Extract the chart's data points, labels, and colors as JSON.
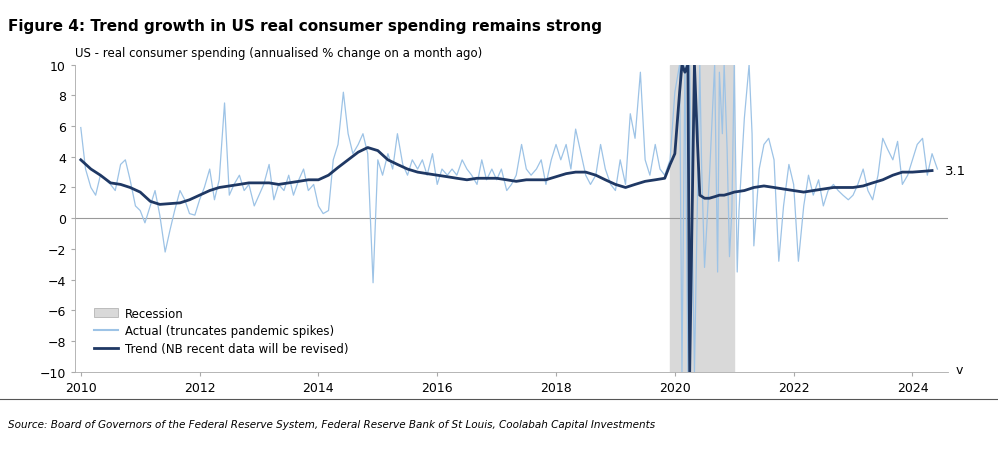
{
  "title": "Figure 4: Trend growth in US real consumer spending remains strong",
  "subtitle": "US - real consumer spending (annualised % change on a month ago)",
  "source": "Source: Board of Governors of the Federal Reserve System, Federal Reserve Bank of St Louis, Coolabah Capital Investments",
  "xlabel": "v",
  "ylim": [
    -10,
    10
  ],
  "xlim": [
    2009.9,
    2024.6
  ],
  "yticks": [
    -10,
    -8,
    -6,
    -4,
    -2,
    0,
    2,
    4,
    6,
    8,
    10
  ],
  "xticks": [
    2010,
    2012,
    2014,
    2016,
    2018,
    2020,
    2022,
    2024
  ],
  "recession_start": 2019.92,
  "recession_end": 2021.0,
  "last_trend_value": 3.1,
  "title_bg_color": "#d6dff0",
  "actual_color": "#9dc3e6",
  "trend_color": "#1f3864",
  "recession_color": "#d9d9d9",
  "actual_data": [
    [
      2010.0,
      5.9
    ],
    [
      2010.08,
      3.2
    ],
    [
      2010.17,
      2.0
    ],
    [
      2010.25,
      1.5
    ],
    [
      2010.33,
      2.8
    ],
    [
      2010.42,
      2.5
    ],
    [
      2010.5,
      2.2
    ],
    [
      2010.58,
      1.8
    ],
    [
      2010.67,
      3.5
    ],
    [
      2010.75,
      3.8
    ],
    [
      2010.83,
      2.5
    ],
    [
      2010.92,
      0.8
    ],
    [
      2011.0,
      0.5
    ],
    [
      2011.08,
      -0.3
    ],
    [
      2011.17,
      0.8
    ],
    [
      2011.25,
      1.8
    ],
    [
      2011.33,
      0.2
    ],
    [
      2011.42,
      -2.2
    ],
    [
      2011.5,
      -0.8
    ],
    [
      2011.58,
      0.5
    ],
    [
      2011.67,
      1.8
    ],
    [
      2011.75,
      1.2
    ],
    [
      2011.83,
      0.3
    ],
    [
      2011.92,
      0.2
    ],
    [
      2012.0,
      1.2
    ],
    [
      2012.08,
      2.0
    ],
    [
      2012.17,
      3.2
    ],
    [
      2012.25,
      1.2
    ],
    [
      2012.33,
      2.5
    ],
    [
      2012.42,
      7.5
    ],
    [
      2012.5,
      1.5
    ],
    [
      2012.58,
      2.2
    ],
    [
      2012.67,
      2.8
    ],
    [
      2012.75,
      1.8
    ],
    [
      2012.83,
      2.2
    ],
    [
      2012.92,
      0.8
    ],
    [
      2013.0,
      1.5
    ],
    [
      2013.08,
      2.2
    ],
    [
      2013.17,
      3.5
    ],
    [
      2013.25,
      1.2
    ],
    [
      2013.33,
      2.2
    ],
    [
      2013.42,
      1.8
    ],
    [
      2013.5,
      2.8
    ],
    [
      2013.58,
      1.5
    ],
    [
      2013.67,
      2.5
    ],
    [
      2013.75,
      3.2
    ],
    [
      2013.83,
      1.8
    ],
    [
      2013.92,
      2.2
    ],
    [
      2014.0,
      0.8
    ],
    [
      2014.08,
      0.3
    ],
    [
      2014.17,
      0.5
    ],
    [
      2014.25,
      3.8
    ],
    [
      2014.33,
      4.8
    ],
    [
      2014.42,
      8.2
    ],
    [
      2014.5,
      5.5
    ],
    [
      2014.58,
      4.2
    ],
    [
      2014.67,
      4.8
    ],
    [
      2014.75,
      5.5
    ],
    [
      2014.83,
      4.2
    ],
    [
      2014.92,
      -4.2
    ],
    [
      2015.0,
      3.8
    ],
    [
      2015.08,
      2.8
    ],
    [
      2015.17,
      4.2
    ],
    [
      2015.25,
      3.2
    ],
    [
      2015.33,
      5.5
    ],
    [
      2015.42,
      3.5
    ],
    [
      2015.5,
      2.8
    ],
    [
      2015.58,
      3.8
    ],
    [
      2015.67,
      3.2
    ],
    [
      2015.75,
      3.8
    ],
    [
      2015.83,
      2.8
    ],
    [
      2015.92,
      4.2
    ],
    [
      2016.0,
      2.2
    ],
    [
      2016.08,
      3.2
    ],
    [
      2016.17,
      2.8
    ],
    [
      2016.25,
      3.2
    ],
    [
      2016.33,
      2.8
    ],
    [
      2016.42,
      3.8
    ],
    [
      2016.5,
      3.2
    ],
    [
      2016.58,
      2.8
    ],
    [
      2016.67,
      2.2
    ],
    [
      2016.75,
      3.8
    ],
    [
      2016.83,
      2.5
    ],
    [
      2016.92,
      3.2
    ],
    [
      2017.0,
      2.5
    ],
    [
      2017.08,
      3.2
    ],
    [
      2017.17,
      1.8
    ],
    [
      2017.25,
      2.2
    ],
    [
      2017.33,
      2.8
    ],
    [
      2017.42,
      4.8
    ],
    [
      2017.5,
      3.2
    ],
    [
      2017.58,
      2.8
    ],
    [
      2017.67,
      3.2
    ],
    [
      2017.75,
      3.8
    ],
    [
      2017.83,
      2.2
    ],
    [
      2017.92,
      3.8
    ],
    [
      2018.0,
      4.8
    ],
    [
      2018.08,
      3.8
    ],
    [
      2018.17,
      4.8
    ],
    [
      2018.25,
      3.2
    ],
    [
      2018.33,
      5.8
    ],
    [
      2018.42,
      4.2
    ],
    [
      2018.5,
      2.8
    ],
    [
      2018.58,
      2.2
    ],
    [
      2018.67,
      2.8
    ],
    [
      2018.75,
      4.8
    ],
    [
      2018.83,
      3.2
    ],
    [
      2018.92,
      2.2
    ],
    [
      2019.0,
      1.8
    ],
    [
      2019.08,
      3.8
    ],
    [
      2019.17,
      2.2
    ],
    [
      2019.25,
      6.8
    ],
    [
      2019.33,
      5.2
    ],
    [
      2019.42,
      9.5
    ],
    [
      2019.5,
      3.8
    ],
    [
      2019.58,
      2.8
    ],
    [
      2019.67,
      4.8
    ],
    [
      2019.75,
      3.2
    ],
    [
      2019.83,
      2.8
    ],
    [
      2019.92,
      3.8
    ],
    [
      2020.0,
      8.2
    ],
    [
      2020.08,
      10.0
    ],
    [
      2020.12,
      -10.0
    ],
    [
      2020.17,
      10.0
    ],
    [
      2020.22,
      -10.0
    ],
    [
      2020.25,
      10.0
    ],
    [
      2020.33,
      -10.0
    ],
    [
      2020.42,
      10.0
    ],
    [
      2020.45,
      3.5
    ],
    [
      2020.5,
      -3.2
    ],
    [
      2020.58,
      2.5
    ],
    [
      2020.67,
      10.0
    ],
    [
      2020.72,
      -3.5
    ],
    [
      2020.75,
      9.5
    ],
    [
      2020.8,
      5.5
    ],
    [
      2020.83,
      10.0
    ],
    [
      2020.88,
      4.5
    ],
    [
      2020.92,
      -2.5
    ],
    [
      2020.96,
      0.5
    ],
    [
      2021.0,
      10.0
    ],
    [
      2021.05,
      -3.5
    ],
    [
      2021.08,
      0.5
    ],
    [
      2021.17,
      6.5
    ],
    [
      2021.25,
      10.0
    ],
    [
      2021.3,
      5.5
    ],
    [
      2021.33,
      -1.8
    ],
    [
      2021.42,
      3.2
    ],
    [
      2021.5,
      4.8
    ],
    [
      2021.58,
      5.2
    ],
    [
      2021.67,
      3.8
    ],
    [
      2021.75,
      -2.8
    ],
    [
      2021.83,
      0.8
    ],
    [
      2021.92,
      3.5
    ],
    [
      2022.0,
      2.2
    ],
    [
      2022.08,
      -2.8
    ],
    [
      2022.17,
      0.8
    ],
    [
      2022.25,
      2.8
    ],
    [
      2022.33,
      1.5
    ],
    [
      2022.42,
      2.5
    ],
    [
      2022.5,
      0.8
    ],
    [
      2022.58,
      1.8
    ],
    [
      2022.67,
      2.2
    ],
    [
      2022.75,
      1.8
    ],
    [
      2022.83,
      1.5
    ],
    [
      2022.92,
      1.2
    ],
    [
      2023.0,
      1.5
    ],
    [
      2023.08,
      2.2
    ],
    [
      2023.17,
      3.2
    ],
    [
      2023.25,
      1.8
    ],
    [
      2023.33,
      1.2
    ],
    [
      2023.42,
      2.8
    ],
    [
      2023.5,
      5.2
    ],
    [
      2023.58,
      4.5
    ],
    [
      2023.67,
      3.8
    ],
    [
      2023.75,
      5.0
    ],
    [
      2023.83,
      2.2
    ],
    [
      2023.92,
      2.8
    ],
    [
      2024.0,
      3.8
    ],
    [
      2024.08,
      4.8
    ],
    [
      2024.17,
      5.2
    ],
    [
      2024.25,
      2.8
    ],
    [
      2024.33,
      4.2
    ],
    [
      2024.42,
      3.2
    ]
  ],
  "trend_data": [
    [
      2010.0,
      3.8
    ],
    [
      2010.17,
      3.2
    ],
    [
      2010.33,
      2.8
    ],
    [
      2010.5,
      2.3
    ],
    [
      2010.67,
      2.2
    ],
    [
      2010.83,
      2.0
    ],
    [
      2011.0,
      1.7
    ],
    [
      2011.17,
      1.1
    ],
    [
      2011.33,
      0.9
    ],
    [
      2011.5,
      0.95
    ],
    [
      2011.67,
      1.0
    ],
    [
      2011.83,
      1.2
    ],
    [
      2012.0,
      1.5
    ],
    [
      2012.17,
      1.8
    ],
    [
      2012.33,
      2.0
    ],
    [
      2012.5,
      2.1
    ],
    [
      2012.67,
      2.2
    ],
    [
      2012.83,
      2.3
    ],
    [
      2013.0,
      2.3
    ],
    [
      2013.17,
      2.3
    ],
    [
      2013.33,
      2.2
    ],
    [
      2013.5,
      2.3
    ],
    [
      2013.67,
      2.4
    ],
    [
      2013.83,
      2.5
    ],
    [
      2014.0,
      2.5
    ],
    [
      2014.17,
      2.8
    ],
    [
      2014.33,
      3.3
    ],
    [
      2014.5,
      3.8
    ],
    [
      2014.67,
      4.3
    ],
    [
      2014.83,
      4.6
    ],
    [
      2015.0,
      4.4
    ],
    [
      2015.17,
      3.8
    ],
    [
      2015.33,
      3.5
    ],
    [
      2015.5,
      3.2
    ],
    [
      2015.67,
      3.0
    ],
    [
      2015.83,
      2.9
    ],
    [
      2016.0,
      2.8
    ],
    [
      2016.17,
      2.7
    ],
    [
      2016.33,
      2.6
    ],
    [
      2016.5,
      2.5
    ],
    [
      2016.67,
      2.6
    ],
    [
      2016.83,
      2.6
    ],
    [
      2017.0,
      2.6
    ],
    [
      2017.17,
      2.5
    ],
    [
      2017.33,
      2.4
    ],
    [
      2017.5,
      2.5
    ],
    [
      2017.67,
      2.5
    ],
    [
      2017.83,
      2.5
    ],
    [
      2018.0,
      2.7
    ],
    [
      2018.17,
      2.9
    ],
    [
      2018.33,
      3.0
    ],
    [
      2018.5,
      3.0
    ],
    [
      2018.67,
      2.8
    ],
    [
      2018.83,
      2.5
    ],
    [
      2019.0,
      2.2
    ],
    [
      2019.17,
      2.0
    ],
    [
      2019.33,
      2.2
    ],
    [
      2019.5,
      2.4
    ],
    [
      2019.67,
      2.5
    ],
    [
      2019.83,
      2.6
    ],
    [
      2019.92,
      3.5
    ],
    [
      2020.0,
      4.2
    ],
    [
      2020.08,
      8.2
    ],
    [
      2020.12,
      10.0
    ],
    [
      2020.17,
      9.5
    ],
    [
      2020.22,
      10.0
    ],
    [
      2020.25,
      -10.0
    ],
    [
      2020.33,
      10.0
    ],
    [
      2020.38,
      5.0
    ],
    [
      2020.42,
      1.5
    ],
    [
      2020.5,
      1.3
    ],
    [
      2020.58,
      1.3
    ],
    [
      2020.67,
      1.4
    ],
    [
      2020.75,
      1.5
    ],
    [
      2020.83,
      1.5
    ],
    [
      2020.92,
      1.6
    ],
    [
      2021.0,
      1.7
    ],
    [
      2021.17,
      1.8
    ],
    [
      2021.33,
      2.0
    ],
    [
      2021.5,
      2.1
    ],
    [
      2021.67,
      2.0
    ],
    [
      2021.83,
      1.9
    ],
    [
      2022.0,
      1.8
    ],
    [
      2022.17,
      1.7
    ],
    [
      2022.33,
      1.8
    ],
    [
      2022.5,
      1.9
    ],
    [
      2022.67,
      2.0
    ],
    [
      2022.83,
      2.0
    ],
    [
      2023.0,
      2.0
    ],
    [
      2023.17,
      2.1
    ],
    [
      2023.33,
      2.3
    ],
    [
      2023.5,
      2.5
    ],
    [
      2023.67,
      2.8
    ],
    [
      2023.83,
      3.0
    ],
    [
      2024.0,
      3.0
    ],
    [
      2024.17,
      3.05
    ],
    [
      2024.33,
      3.1
    ]
  ]
}
